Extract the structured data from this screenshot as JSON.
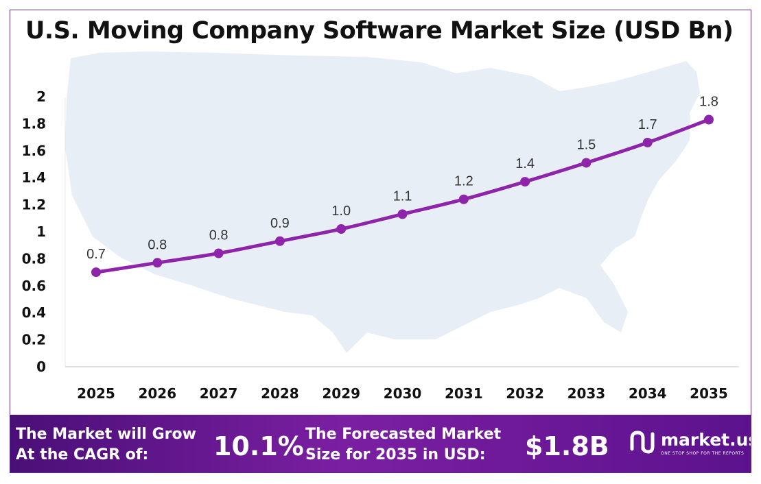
{
  "chart_data": {
    "type": "line",
    "title": "U.S. Moving Company Software Market Size (USD Bn)",
    "xlabel": "",
    "ylabel": "",
    "categories": [
      "2025",
      "2026",
      "2027",
      "2028",
      "2029",
      "2030",
      "2031",
      "2032",
      "2033",
      "2034",
      "2035"
    ],
    "values": [
      0.7,
      0.77,
      0.84,
      0.93,
      1.02,
      1.13,
      1.24,
      1.37,
      1.51,
      1.66,
      1.83
    ],
    "data_labels": [
      "0.7",
      "0.8",
      "0.8",
      "0.9",
      "1.0",
      "1.1",
      "1.2",
      "1.4",
      "1.5",
      "1.7",
      "1.8"
    ],
    "ylim": [
      0,
      2
    ],
    "yticks": [
      0,
      0.2,
      0.4,
      0.6,
      0.8,
      1,
      1.2,
      1.4,
      1.6,
      1.8,
      2
    ],
    "ytick_labels": [
      "0",
      "0.2",
      "0.4",
      "0.6",
      "0.8",
      "1",
      "1.2",
      "1.4",
      "1.6",
      "1.8",
      "2"
    ],
    "grid": false,
    "legend": "none",
    "line_color": "#8e24aa",
    "background": "U.S. map silhouette"
  },
  "footer": {
    "cagr_label_line1": "The Market will Grow",
    "cagr_label_line2": "At the CAGR of:",
    "cagr_value": "10.1%",
    "forecast_label_line1": "The Forecasted Market",
    "forecast_label_line2": "Size for 2035 in USD:",
    "forecast_value": "$1.8B"
  },
  "logo": {
    "name": "market.us",
    "tagline": "ONE STOP SHOP FOR THE REPORTS"
  },
  "colors": {
    "line": "#8e24aa",
    "footer_start": "#4a0f77",
    "footer_end": "#5c128d",
    "border": "#5a2a8a",
    "map": "#e6edf6"
  }
}
